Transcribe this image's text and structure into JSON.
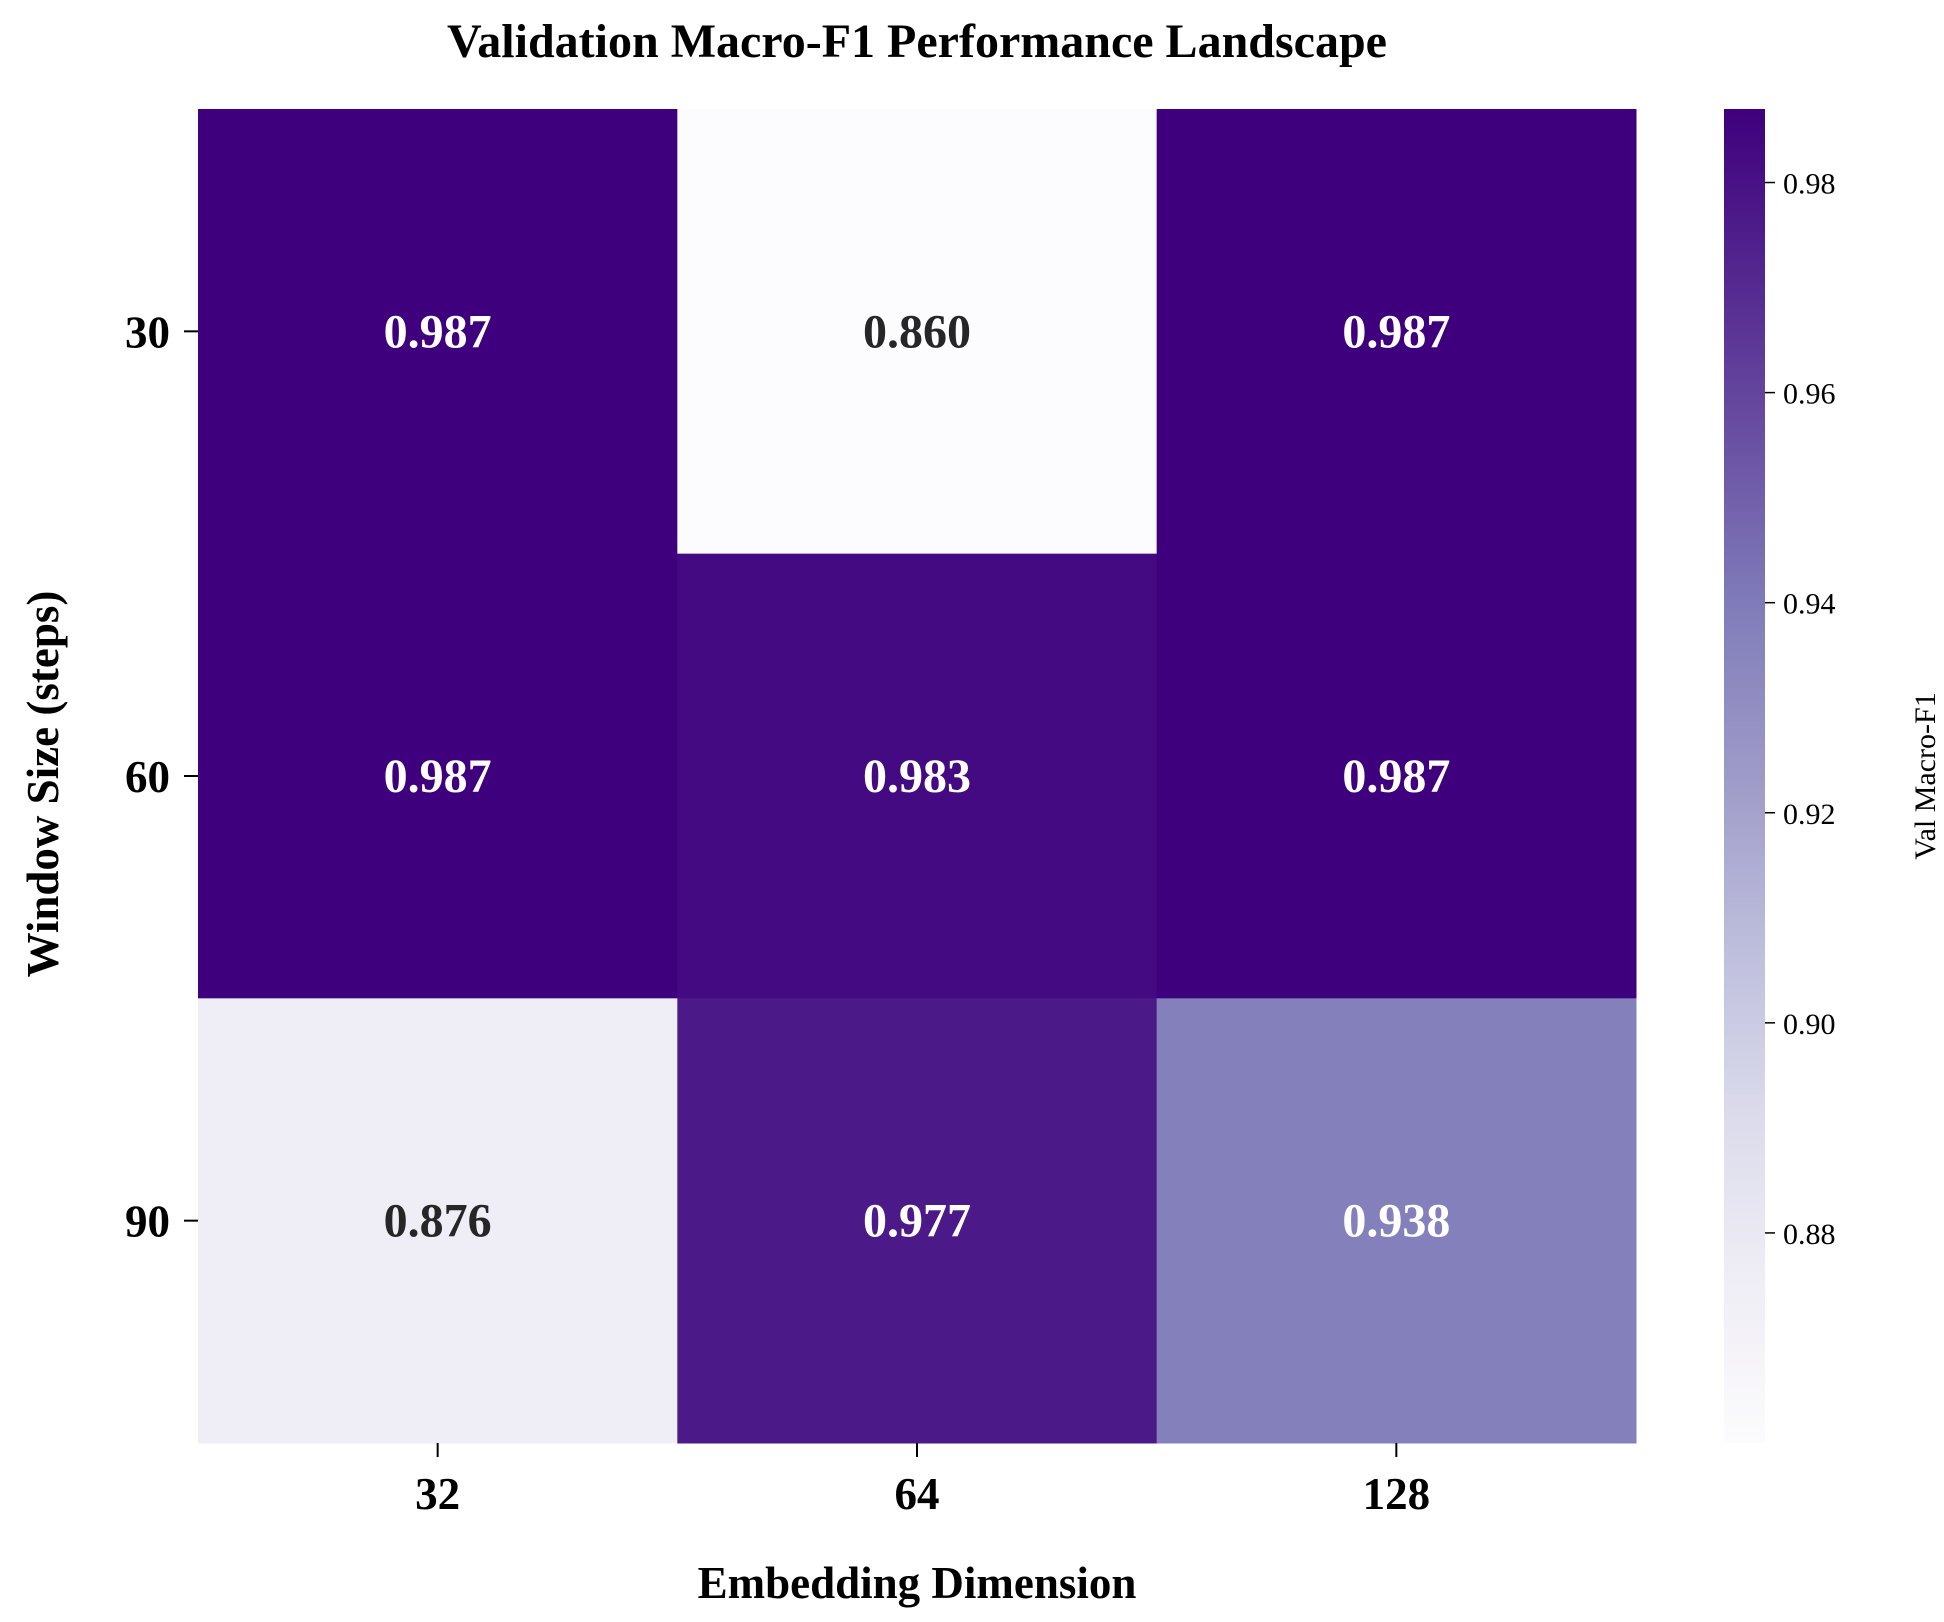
{
  "chart_data": {
    "type": "heatmap",
    "title": "Validation Macro-F1 Performance Landscape",
    "xlabel": "Embedding Dimension",
    "ylabel": "Window Size (steps)",
    "x_categories": [
      "32",
      "64",
      "128"
    ],
    "y_categories": [
      "30",
      "60",
      "90"
    ],
    "values": [
      [
        0.987,
        0.86,
        0.987
      ],
      [
        0.987,
        0.983,
        0.987
      ],
      [
        0.876,
        0.977,
        0.938
      ]
    ],
    "value_labels": [
      [
        "0.987",
        "0.860",
        "0.987"
      ],
      [
        "0.987",
        "0.983",
        "0.987"
      ],
      [
        "0.876",
        "0.977",
        "0.938"
      ]
    ],
    "colormap": "Purples",
    "color_range": [
      0.86,
      0.987
    ],
    "colorbar": {
      "label": "Val Macro-F1",
      "ticks": [
        0.88,
        0.9,
        0.92,
        0.94,
        0.96,
        0.98
      ],
      "tick_labels": [
        "0.88",
        "0.90",
        "0.92",
        "0.94",
        "0.96",
        "0.98"
      ],
      "placement": "right"
    },
    "grid": false,
    "colors": {
      "low": "#fcfbfd",
      "high": "#3f007d",
      "label_dark": "#262626",
      "label_light": "#ffffff"
    }
  }
}
